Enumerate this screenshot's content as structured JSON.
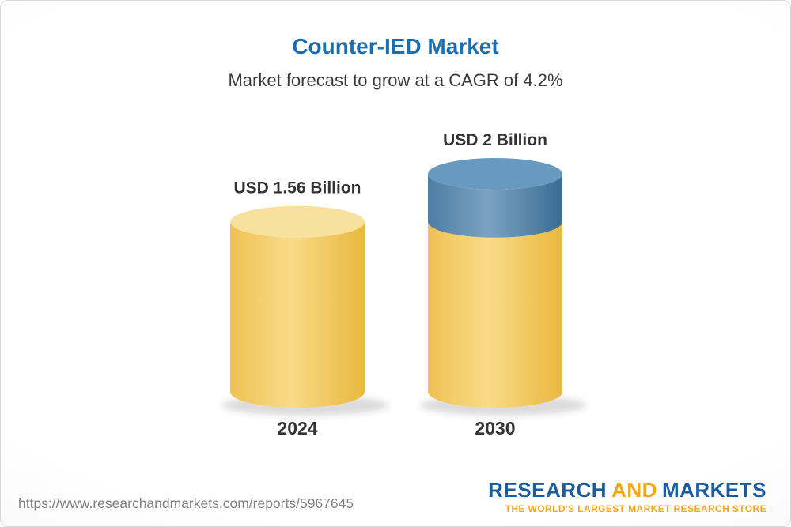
{
  "header": {
    "title": "Counter-IED Market",
    "subtitle": "Market forecast to grow at a CAGR of 4.2%"
  },
  "chart_data": {
    "type": "bar",
    "subtype": "3d-cylinder",
    "title": "Counter-IED Market",
    "subtitle": "Market forecast to grow at a CAGR of 4.2%",
    "unit": "USD Billion",
    "cagr_percent": 4.2,
    "categories": [
      "2024",
      "2030"
    ],
    "values": [
      1.56,
      2
    ],
    "value_labels": [
      "USD 1.56 Billion",
      "USD 2 Billion"
    ],
    "bars": [
      {
        "year": "2024",
        "label": "USD 1.56 Billion",
        "total": 1.56,
        "segments": [
          {
            "value": 1.56,
            "palette": "yellow"
          }
        ]
      },
      {
        "year": "2030",
        "label": "USD 2 Billion",
        "total": 2,
        "segments": [
          {
            "value": 1.56,
            "palette": "yellow"
          },
          {
            "value": 0.44,
            "palette": "blue"
          }
        ]
      }
    ],
    "palettes": {
      "yellow": {
        "side": [
          "#EFC155",
          "#F9DB88",
          "#E9B83E"
        ],
        "top": "#F8E19C"
      },
      "blue": {
        "side": [
          "#4E7EA5",
          "#7BA2C1",
          "#3B6C94"
        ],
        "top": "#689AC0"
      }
    },
    "axis": {
      "x_ticks": [
        "2024",
        "2030"
      ],
      "y_axis_visible": false,
      "grid": false,
      "legend": false
    }
  },
  "footer": {
    "url": "https://www.researchandmarkets.com/reports/5967645",
    "logo": {
      "part1": "RESEARCH",
      "part2": "AND",
      "part3": "MARKETS",
      "tagline": "THE WORLD'S LARGEST MARKET RESEARCH STORE"
    }
  }
}
